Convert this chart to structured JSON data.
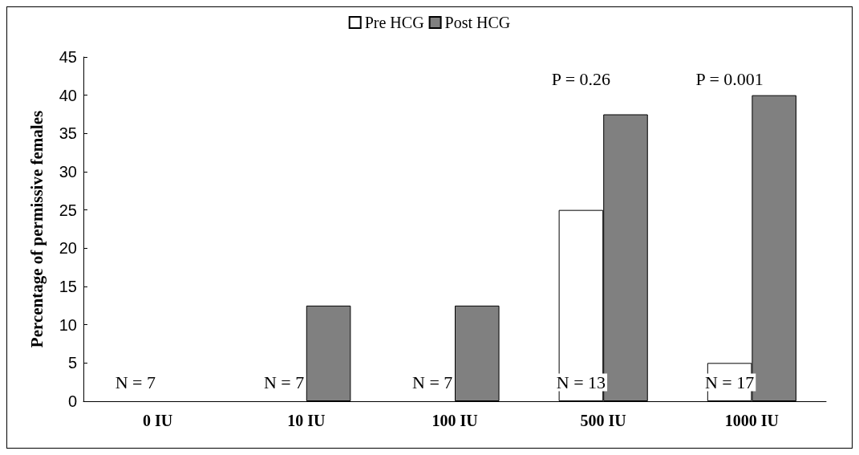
{
  "chart_data": {
    "type": "bar",
    "ylabel": "Percentage of permissive females",
    "categories": [
      "0 IU",
      "10 IU",
      "100 IU",
      "500 IU",
      "1000 IU"
    ],
    "series": [
      {
        "name": "Pre HCG",
        "color": "#ffffff",
        "values": [
          0,
          0,
          0,
          25,
          5
        ]
      },
      {
        "name": "Post HCG",
        "color": "#808080",
        "values": [
          0,
          12.5,
          12.5,
          37.5,
          40
        ]
      }
    ],
    "ylim": [
      0,
      45
    ],
    "yticks": [
      0,
      5,
      10,
      15,
      20,
      25,
      30,
      35,
      40,
      45
    ],
    "grid": false,
    "legend": "top",
    "annotations": [
      "N = 7",
      "N = 7",
      "N = 7",
      "N = 13",
      "N = 17",
      "P = 0.26",
      "P = 0.001"
    ]
  }
}
